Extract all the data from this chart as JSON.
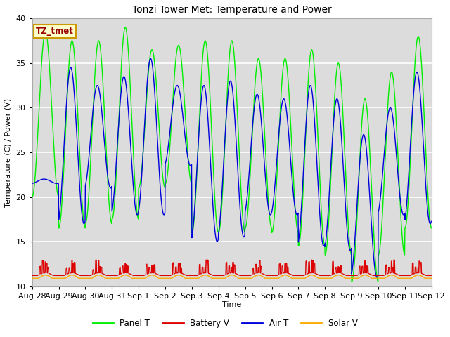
{
  "title": "Tonzi Tower Met: Temperature and Power",
  "xlabel": "Time",
  "ylabel": "Temperature (C) / Power (V)",
  "ylim": [
    10,
    40
  ],
  "annotation_text": "TZ_tmet",
  "bg_color": "#dcdcdc",
  "face_color": "#ffffff",
  "grid_color": "#ffffff",
  "line_panel_t": "#00ee00",
  "line_battery_v": "#dd0000",
  "line_air_t": "#0000dd",
  "line_solar_v": "#ffaa00",
  "legend_labels": [
    "Panel T",
    "Battery V",
    "Air T",
    "Solar V"
  ],
  "x_tick_labels": [
    "Aug 28",
    "Aug 29",
    "Aug 30",
    "Aug 31",
    "Sep 1",
    "Sep 2",
    "Sep 3",
    "Sep 4",
    "Sep 5",
    "Sep 6",
    "Sep 7",
    "Sep 8",
    "Sep 9",
    "Sep 10",
    "Sep 11",
    "Sep 12"
  ],
  "n_days": 15,
  "pts_per_day": 96,
  "panel_t_peaks": [
    38.5,
    37.5,
    37.5,
    39.0,
    36.5,
    37.0,
    37.5,
    37.5,
    35.5,
    35.5,
    36.5,
    35.0,
    31.0,
    34.0,
    38.0
  ],
  "panel_t_troughs": [
    20.0,
    16.5,
    17.0,
    17.5,
    21.0,
    21.5,
    16.0,
    16.0,
    16.5,
    16.0,
    14.5,
    13.5,
    10.5,
    13.5,
    16.5
  ],
  "air_t_peaks": [
    22.0,
    34.5,
    32.5,
    33.5,
    35.5,
    32.5,
    32.5,
    33.0,
    31.5,
    31.0,
    32.5,
    31.0,
    27.0,
    30.0,
    34.0
  ],
  "air_t_troughs": [
    21.5,
    17.0,
    21.0,
    18.0,
    18.0,
    23.5,
    15.0,
    15.5,
    18.0,
    18.0,
    14.5,
    14.0,
    11.0,
    18.0,
    17.0
  ],
  "figsize": [
    6.4,
    4.8
  ],
  "dpi": 100
}
